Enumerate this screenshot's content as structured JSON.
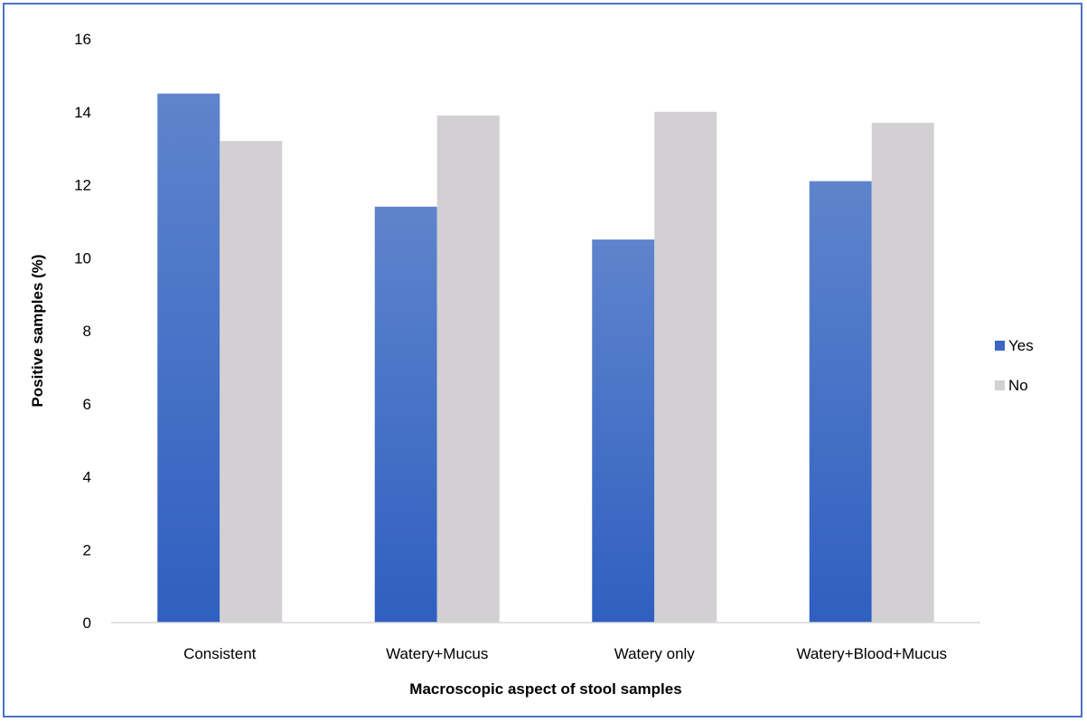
{
  "chart_data": {
    "type": "bar",
    "title": "",
    "xlabel": "Macroscopic aspect of stool samples",
    "ylabel": "Positive samples (%)",
    "categories": [
      "Consistent",
      "Watery+Mucus",
      "Watery only",
      "Watery+Blood+Mucus"
    ],
    "series": [
      {
        "name": "Yes",
        "values": [
          14.5,
          11.4,
          10.5,
          12.1
        ],
        "color": "#3a67c4"
      },
      {
        "name": "No",
        "values": [
          13.2,
          13.9,
          14.0,
          13.7
        ],
        "color": "#d2d0d2"
      }
    ],
    "ylim": [
      0,
      16
    ],
    "yticks": [
      0,
      2,
      4,
      6,
      8,
      10,
      12,
      14,
      16
    ],
    "grid": false,
    "legend_position": "right"
  }
}
